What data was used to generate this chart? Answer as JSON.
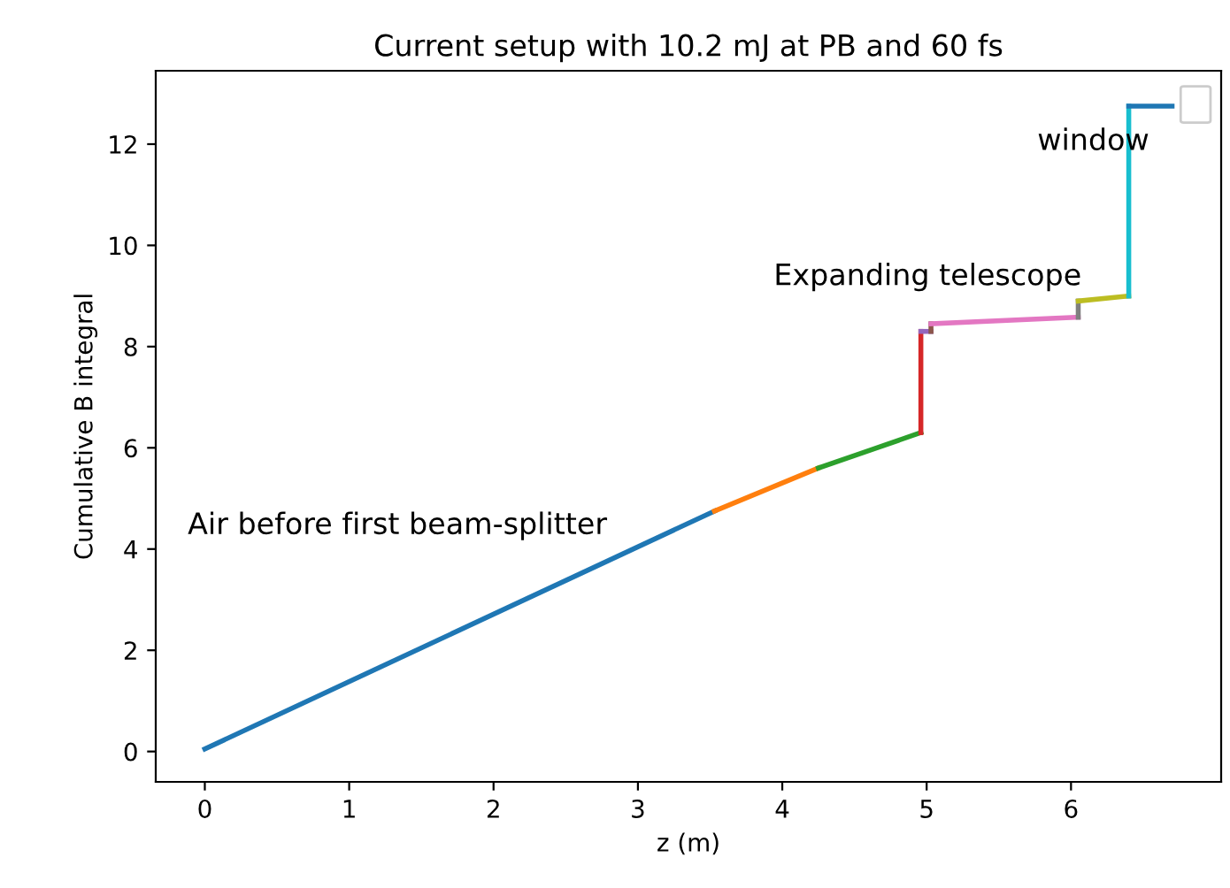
{
  "chart_data": {
    "type": "line",
    "title": "Current setup with 10.2 mJ at PB and 60 fs",
    "xlabel": "z (m)",
    "ylabel": "Cumulative B integral",
    "series": [
      {
        "color": "#1f77b4",
        "x": [
          0,
          3.53
        ],
        "values": [
          0.05,
          4.75
        ]
      },
      {
        "color": "#ff7f0e",
        "x": [
          3.53,
          4.25
        ],
        "values": [
          4.75,
          5.6
        ]
      },
      {
        "color": "#2ca02c",
        "x": [
          4.25,
          4.96
        ],
        "values": [
          5.6,
          6.3
        ]
      },
      {
        "color": "#d62728",
        "x": [
          4.96,
          4.96
        ],
        "values": [
          6.3,
          8.3
        ]
      },
      {
        "color": "#9467bd",
        "x": [
          4.96,
          5.03
        ],
        "values": [
          8.3,
          8.3
        ]
      },
      {
        "color": "#8c564b",
        "x": [
          5.03,
          5.03
        ],
        "values": [
          8.3,
          8.45
        ]
      },
      {
        "color": "#e377c2",
        "x": [
          5.03,
          6.05
        ],
        "values": [
          8.45,
          8.58
        ]
      },
      {
        "color": "#7f7f7f",
        "x": [
          6.05,
          6.05
        ],
        "values": [
          8.58,
          8.9
        ]
      },
      {
        "color": "#bcbd22",
        "x": [
          6.05,
          6.4
        ],
        "values": [
          8.9,
          9.0
        ]
      },
      {
        "color": "#17becf",
        "x": [
          6.4,
          6.4
        ],
        "values": [
          9.0,
          12.75
        ]
      },
      {
        "color": "#1f77b4",
        "x": [
          6.4,
          6.7
        ],
        "values": [
          12.75,
          12.75
        ]
      }
    ],
    "annotations": [
      "Air before first beam-splitter",
      "Expanding telescope",
      "window"
    ],
    "xlim": [
      -0.34,
      7.04
    ],
    "ylim": [
      -0.6,
      13.45
    ],
    "xticks": [
      0,
      1,
      2,
      3,
      4,
      5,
      6
    ],
    "yticks": [
      0,
      2,
      4,
      6,
      8,
      10,
      12
    ],
    "grid": false
  }
}
